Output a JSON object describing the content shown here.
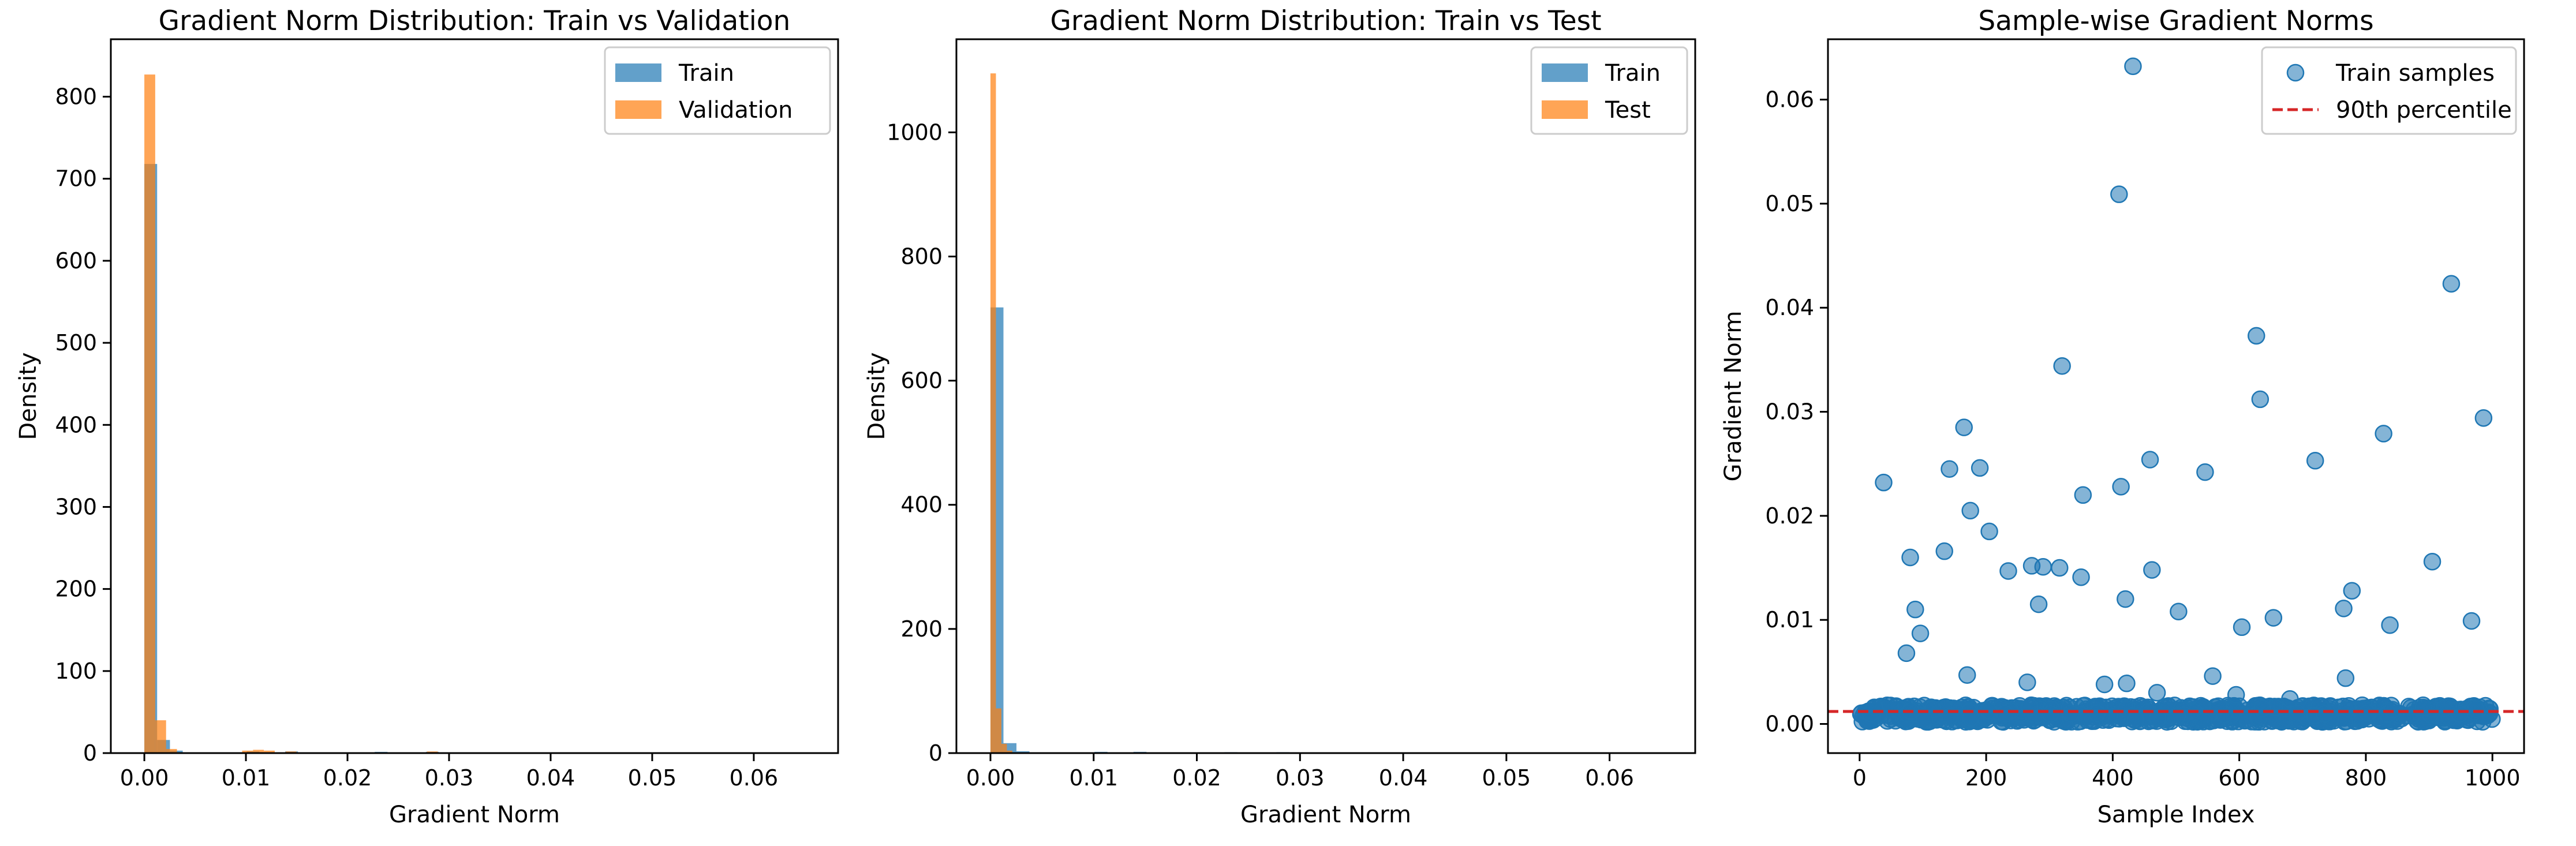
{
  "chart_data": [
    {
      "type": "bar",
      "subtype": "histogram",
      "title": "Gradient Norm Distribution: Train vs Validation",
      "xlabel": "Gradient Norm",
      "ylabel": "Density",
      "xlim": [
        -0.0033,
        0.0683
      ],
      "ylim": [
        0,
        870
      ],
      "xticks": [
        0.0,
        0.01,
        0.02,
        0.03,
        0.04,
        0.05,
        0.06
      ],
      "xtick_labels": [
        "0.00",
        "0.01",
        "0.02",
        "0.03",
        "0.04",
        "0.05",
        "0.06"
      ],
      "yticks": [
        0,
        100,
        200,
        300,
        400,
        500,
        600,
        700,
        800
      ],
      "yticks_labels": [
        "0",
        "100",
        "200",
        "300",
        "400",
        "500",
        "600",
        "700",
        "800"
      ],
      "legend_position": "top-right",
      "series": [
        {
          "name": "Train",
          "color": "#1f77b4",
          "bin_width": 0.00126,
          "bins": [
            {
              "x0": 0.0,
              "value": 718
            },
            {
              "x0": 0.00126,
              "value": 16
            },
            {
              "x0": 0.00252,
              "value": 3
            },
            {
              "x0": 0.01008,
              "value": 2
            },
            {
              "x0": 0.01386,
              "value": 2
            },
            {
              "x0": 0.02268,
              "value": 1.5
            },
            {
              "x0": 0.02772,
              "value": 1.5
            },
            {
              "x0": 0.03654,
              "value": 0.8
            },
            {
              "x0": 0.0504,
              "value": 0.8
            },
            {
              "x0": 0.063,
              "value": 0.8
            }
          ]
        },
        {
          "name": "Validation",
          "color": "#ff7f0e",
          "bin_width": 0.00107,
          "bins": [
            {
              "x0": 0.0,
              "value": 827
            },
            {
              "x0": 0.00107,
              "value": 40
            },
            {
              "x0": 0.00214,
              "value": 5
            },
            {
              "x0": 0.00963,
              "value": 3
            },
            {
              "x0": 0.0107,
              "value": 4
            },
            {
              "x0": 0.01177,
              "value": 3
            },
            {
              "x0": 0.01391,
              "value": 2
            },
            {
              "x0": 0.02782,
              "value": 2
            }
          ]
        }
      ]
    },
    {
      "type": "bar",
      "subtype": "histogram",
      "title": "Gradient Norm Distribution: Train vs Test",
      "xlabel": "Gradient Norm",
      "ylabel": "Density",
      "xlim": [
        -0.0033,
        0.0683
      ],
      "ylim": [
        0,
        1150
      ],
      "xticks": [
        0.0,
        0.01,
        0.02,
        0.03,
        0.04,
        0.05,
        0.06
      ],
      "xtick_labels": [
        "0.00",
        "0.01",
        "0.02",
        "0.03",
        "0.04",
        "0.05",
        "0.06"
      ],
      "yticks": [
        0,
        200,
        400,
        600,
        800,
        1000
      ],
      "yticks_labels": [
        "0",
        "200",
        "400",
        "600",
        "800",
        "1000"
      ],
      "legend_position": "top-right",
      "series": [
        {
          "name": "Train",
          "color": "#1f77b4",
          "bin_width": 0.00126,
          "bins": [
            {
              "x0": 0.0,
              "value": 718
            },
            {
              "x0": 0.00126,
              "value": 16
            },
            {
              "x0": 0.00252,
              "value": 3
            },
            {
              "x0": 0.01008,
              "value": 2
            },
            {
              "x0": 0.01386,
              "value": 2
            },
            {
              "x0": 0.02268,
              "value": 1.5
            },
            {
              "x0": 0.02772,
              "value": 1.5
            },
            {
              "x0": 0.03654,
              "value": 0.8
            },
            {
              "x0": 0.0504,
              "value": 0.8
            },
            {
              "x0": 0.063,
              "value": 0.8
            }
          ]
        },
        {
          "name": "Test",
          "color": "#ff7f0e",
          "bin_width": 0.00053,
          "bins": [
            {
              "x0": 0.0,
              "value": 1095
            },
            {
              "x0": 0.00053,
              "value": 72
            },
            {
              "x0": 0.00106,
              "value": 15
            },
            {
              "x0": 0.00159,
              "value": 4
            }
          ]
        }
      ]
    },
    {
      "type": "scatter",
      "title": "Sample-wise Gradient Norms",
      "xlabel": "Sample Index",
      "ylabel": "Gradient Norm",
      "xlim": [
        -50,
        1050
      ],
      "ylim": [
        -0.0028,
        0.0658
      ],
      "xticks": [
        0,
        200,
        400,
        600,
        800,
        1000
      ],
      "xtick_labels": [
        "0",
        "200",
        "400",
        "600",
        "800",
        "1000"
      ],
      "yticks": [
        0.0,
        0.01,
        0.02,
        0.03,
        0.04,
        0.05,
        0.06
      ],
      "yticks_labels": [
        "0.00",
        "0.01",
        "0.02",
        "0.03",
        "0.04",
        "0.05",
        "0.06"
      ],
      "legend_position": "top-right",
      "series": [
        {
          "name": "Train samples",
          "color": "#1f77b4",
          "opacity": 0.55,
          "outliers": [
            {
              "x": 432,
              "y": 0.0632
            },
            {
              "x": 410,
              "y": 0.0509
            },
            {
              "x": 935,
              "y": 0.0423
            },
            {
              "x": 627,
              "y": 0.0373
            },
            {
              "x": 320,
              "y": 0.0344
            },
            {
              "x": 633,
              "y": 0.0312
            },
            {
              "x": 986,
              "y": 0.0294
            },
            {
              "x": 165,
              "y": 0.0285
            },
            {
              "x": 828,
              "y": 0.0279
            },
            {
              "x": 459,
              "y": 0.0254
            },
            {
              "x": 720,
              "y": 0.0253
            },
            {
              "x": 190,
              "y": 0.0246
            },
            {
              "x": 142,
              "y": 0.0245
            },
            {
              "x": 546,
              "y": 0.0242
            },
            {
              "x": 38,
              "y": 0.0232
            },
            {
              "x": 413,
              "y": 0.0228
            },
            {
              "x": 353,
              "y": 0.022
            },
            {
              "x": 175,
              "y": 0.0205
            },
            {
              "x": 205,
              "y": 0.0185
            },
            {
              "x": 134,
              "y": 0.0166
            },
            {
              "x": 80,
              "y": 0.016
            },
            {
              "x": 905,
              "y": 0.0156
            },
            {
              "x": 272,
              "y": 0.0152
            },
            {
              "x": 290,
              "y": 0.0151
            },
            {
              "x": 316,
              "y": 0.015
            },
            {
              "x": 235,
              "y": 0.0147
            },
            {
              "x": 462,
              "y": 0.0148
            },
            {
              "x": 350,
              "y": 0.0141
            },
            {
              "x": 778,
              "y": 0.0128
            },
            {
              "x": 420,
              "y": 0.012
            },
            {
              "x": 283,
              "y": 0.0115
            },
            {
              "x": 765,
              "y": 0.0111
            },
            {
              "x": 88,
              "y": 0.011
            },
            {
              "x": 504,
              "y": 0.0108
            },
            {
              "x": 654,
              "y": 0.0102
            },
            {
              "x": 967,
              "y": 0.0099
            },
            {
              "x": 604,
              "y": 0.0093
            },
            {
              "x": 838,
              "y": 0.0095
            },
            {
              "x": 96,
              "y": 0.0087
            },
            {
              "x": 74,
              "y": 0.0068
            },
            {
              "x": 170,
              "y": 0.0047
            },
            {
              "x": 558,
              "y": 0.0046
            },
            {
              "x": 768,
              "y": 0.0044
            },
            {
              "x": 265,
              "y": 0.004
            },
            {
              "x": 422,
              "y": 0.0039
            },
            {
              "x": 387,
              "y": 0.0038
            },
            {
              "x": 470,
              "y": 0.003
            },
            {
              "x": 595,
              "y": 0.0028
            },
            {
              "x": 680,
              "y": 0.0024
            }
          ],
          "bulk": {
            "count": 950,
            "x_range": [
              0,
              1000
            ],
            "y_range": [
              0.0002,
              0.0018
            ]
          }
        },
        {
          "name": "90th percentile",
          "kind": "hline",
          "y": 0.0012,
          "color": "#d62728",
          "style": "dashed"
        }
      ]
    }
  ]
}
